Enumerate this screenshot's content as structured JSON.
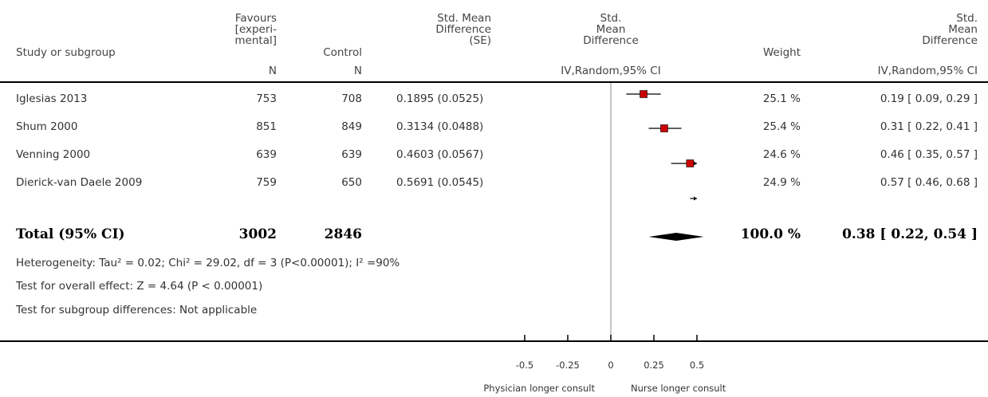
{
  "header": {
    "study_col": "Study or subgroup",
    "exp_col": "Favours\n[experi-\nmental]",
    "control_col": "Control",
    "smd_se_col": "Std. Mean\nDifference\n(SE)",
    "smd_plot_col": "Std.\nMean\nDifference",
    "weight_col": "Weight",
    "smd_ci_col": "Std.\nMean\nDifference",
    "exp_n": "N",
    "control_n": "N",
    "plot_method": "IV,Random,95% CI",
    "ci_method": "IV,Random,95% CI"
  },
  "studies": [
    {
      "name": "Iglesias 2013",
      "exp_n": "753",
      "control_n": "708",
      "smd_se": "0.1895 (0.0525)",
      "weight": "25.1 %",
      "ci_text": "0.19 [ 0.09, 0.29 ]"
    },
    {
      "name": "Shum 2000",
      "exp_n": "851",
      "control_n": "849",
      "smd_se": "0.3134 (0.0488)",
      "weight": "25.4 %",
      "ci_text": "0.31 [ 0.22, 0.41 ]"
    },
    {
      "name": "Venning 2000",
      "exp_n": "639",
      "control_n": "639",
      "smd_se": "0.4603 (0.0567)",
      "weight": "24.6 %",
      "ci_text": "0.46 [ 0.35, 0.57 ]"
    },
    {
      "name": "Dierick-van Daele 2009",
      "exp_n": "759",
      "control_n": "650",
      "smd_se": "0.5691 (0.0545)",
      "weight": "24.9 %",
      "ci_text": "0.57 [ 0.46, 0.68 ]"
    }
  ],
  "total": {
    "label": "Total (95% CI)",
    "exp_n": "3002",
    "control_n": "2846",
    "weight": "100.0 %",
    "ci_text": "0.38 [ 0.22, 0.54 ]"
  },
  "notes": {
    "heterogeneity": "Heterogeneity: Tau² = 0.02; Chi² = 29.02, df = 3 (P<0.00001); I² =90%",
    "overall_effect": "Test for overall effect: Z = 4.64 (P < 0.00001)",
    "subgroup": "Test for subgroup differences: Not applicable"
  },
  "axis": {
    "left_label": "Physician longer consult",
    "right_label": "Nurse longer consult"
  },
  "colors": {
    "marker": "#cc0000",
    "diamond": "#000000"
  },
  "chart_data": {
    "type": "scatter",
    "subtype": "forest",
    "xlim": [
      -0.5,
      0.5
    ],
    "xticks": [
      -0.5,
      -0.25,
      0,
      0.25,
      0.5
    ],
    "xtick_labels": [
      "-0.5",
      "-0.25",
      "0",
      "0.25",
      "0.5"
    ],
    "x_clip_right": 0.5,
    "studies": [
      {
        "estimate": 0.19,
        "lower": 0.09,
        "upper": 0.29,
        "weight": 25.1
      },
      {
        "estimate": 0.31,
        "lower": 0.22,
        "upper": 0.41,
        "weight": 25.4
      },
      {
        "estimate": 0.46,
        "lower": 0.35,
        "upper": 0.57,
        "weight": 24.6
      },
      {
        "estimate": 0.57,
        "lower": 0.46,
        "upper": 0.68,
        "weight": 24.9
      }
    ],
    "pooled": {
      "estimate": 0.38,
      "lower": 0.22,
      "upper": 0.54
    }
  }
}
